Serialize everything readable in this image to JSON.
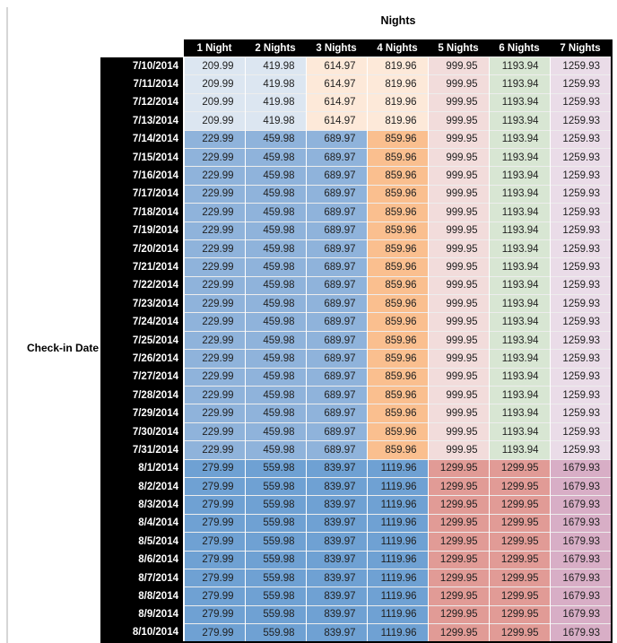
{
  "header": {
    "title": "Nights",
    "row_axis_label": "Check-in Date"
  },
  "colors": {
    "header_bg": "#000000",
    "header_text": "#ffffff",
    "date_bg": "#000000",
    "date_text": "#ffffff",
    "value_text": "#1f1f1f",
    "tier_cell_colors": {
      "low": [
        "#dce6f1",
        "#dce6f1",
        "#fde9d9",
        "#fde9d9",
        "#f2dcdb",
        "#d8e6d3",
        "#eadce8"
      ],
      "mid": [
        "#8fb3db",
        "#8fb3db",
        "#8fb3db",
        "#fabf8f",
        "#f2dcdb",
        "#d8e6d3",
        "#eadce8"
      ],
      "high": [
        "#6fa1d3",
        "#6fa1d3",
        "#6fa1d3",
        "#6fa1d3",
        "#e19b96",
        "#e19b96",
        "#d8aec6"
      ]
    }
  },
  "chart_data": {
    "type": "table",
    "title": "Nights",
    "row_label": "Check-in Date",
    "columns": [
      "1 Night",
      "2 Nights",
      "3 Nights",
      "4 Nights",
      "5 Nights",
      "6 Nights",
      "7 Nights"
    ],
    "rows": [
      {
        "date": "7/10/2014",
        "tier": "low",
        "values": [
          209.99,
          419.98,
          614.97,
          819.96,
          999.95,
          1193.94,
          1259.93
        ]
      },
      {
        "date": "7/11/2014",
        "tier": "low",
        "values": [
          209.99,
          419.98,
          614.97,
          819.96,
          999.95,
          1193.94,
          1259.93
        ]
      },
      {
        "date": "7/12/2014",
        "tier": "low",
        "values": [
          209.99,
          419.98,
          614.97,
          819.96,
          999.95,
          1193.94,
          1259.93
        ]
      },
      {
        "date": "7/13/2014",
        "tier": "low",
        "values": [
          209.99,
          419.98,
          614.97,
          819.96,
          999.95,
          1193.94,
          1259.93
        ]
      },
      {
        "date": "7/14/2014",
        "tier": "mid",
        "values": [
          229.99,
          459.98,
          689.97,
          859.96,
          999.95,
          1193.94,
          1259.93
        ]
      },
      {
        "date": "7/15/2014",
        "tier": "mid",
        "values": [
          229.99,
          459.98,
          689.97,
          859.96,
          999.95,
          1193.94,
          1259.93
        ]
      },
      {
        "date": "7/16/2014",
        "tier": "mid",
        "values": [
          229.99,
          459.98,
          689.97,
          859.96,
          999.95,
          1193.94,
          1259.93
        ]
      },
      {
        "date": "7/17/2014",
        "tier": "mid",
        "values": [
          229.99,
          459.98,
          689.97,
          859.96,
          999.95,
          1193.94,
          1259.93
        ]
      },
      {
        "date": "7/18/2014",
        "tier": "mid",
        "values": [
          229.99,
          459.98,
          689.97,
          859.96,
          999.95,
          1193.94,
          1259.93
        ]
      },
      {
        "date": "7/19/2014",
        "tier": "mid",
        "values": [
          229.99,
          459.98,
          689.97,
          859.96,
          999.95,
          1193.94,
          1259.93
        ]
      },
      {
        "date": "7/20/2014",
        "tier": "mid",
        "values": [
          229.99,
          459.98,
          689.97,
          859.96,
          999.95,
          1193.94,
          1259.93
        ]
      },
      {
        "date": "7/21/2014",
        "tier": "mid",
        "values": [
          229.99,
          459.98,
          689.97,
          859.96,
          999.95,
          1193.94,
          1259.93
        ]
      },
      {
        "date": "7/22/2014",
        "tier": "mid",
        "values": [
          229.99,
          459.98,
          689.97,
          859.96,
          999.95,
          1193.94,
          1259.93
        ]
      },
      {
        "date": "7/23/2014",
        "tier": "mid",
        "values": [
          229.99,
          459.98,
          689.97,
          859.96,
          999.95,
          1193.94,
          1259.93
        ]
      },
      {
        "date": "7/24/2014",
        "tier": "mid",
        "values": [
          229.99,
          459.98,
          689.97,
          859.96,
          999.95,
          1193.94,
          1259.93
        ]
      },
      {
        "date": "7/25/2014",
        "tier": "mid",
        "values": [
          229.99,
          459.98,
          689.97,
          859.96,
          999.95,
          1193.94,
          1259.93
        ]
      },
      {
        "date": "7/26/2014",
        "tier": "mid",
        "values": [
          229.99,
          459.98,
          689.97,
          859.96,
          999.95,
          1193.94,
          1259.93
        ]
      },
      {
        "date": "7/27/2014",
        "tier": "mid",
        "values": [
          229.99,
          459.98,
          689.97,
          859.96,
          999.95,
          1193.94,
          1259.93
        ]
      },
      {
        "date": "7/28/2014",
        "tier": "mid",
        "values": [
          229.99,
          459.98,
          689.97,
          859.96,
          999.95,
          1193.94,
          1259.93
        ]
      },
      {
        "date": "7/29/2014",
        "tier": "mid",
        "values": [
          229.99,
          459.98,
          689.97,
          859.96,
          999.95,
          1193.94,
          1259.93
        ]
      },
      {
        "date": "7/30/2014",
        "tier": "mid",
        "values": [
          229.99,
          459.98,
          689.97,
          859.96,
          999.95,
          1193.94,
          1259.93
        ]
      },
      {
        "date": "7/31/2014",
        "tier": "mid",
        "values": [
          229.99,
          459.98,
          689.97,
          859.96,
          999.95,
          1193.94,
          1259.93
        ]
      },
      {
        "date": "8/1/2014",
        "tier": "high",
        "values": [
          279.99,
          559.98,
          839.97,
          1119.96,
          1299.95,
          1299.95,
          1679.93
        ]
      },
      {
        "date": "8/2/2014",
        "tier": "high",
        "values": [
          279.99,
          559.98,
          839.97,
          1119.96,
          1299.95,
          1299.95,
          1679.93
        ]
      },
      {
        "date": "8/3/2014",
        "tier": "high",
        "values": [
          279.99,
          559.98,
          839.97,
          1119.96,
          1299.95,
          1299.95,
          1679.93
        ]
      },
      {
        "date": "8/4/2014",
        "tier": "high",
        "values": [
          279.99,
          559.98,
          839.97,
          1119.96,
          1299.95,
          1299.95,
          1679.93
        ]
      },
      {
        "date": "8/5/2014",
        "tier": "high",
        "values": [
          279.99,
          559.98,
          839.97,
          1119.96,
          1299.95,
          1299.95,
          1679.93
        ]
      },
      {
        "date": "8/6/2014",
        "tier": "high",
        "values": [
          279.99,
          559.98,
          839.97,
          1119.96,
          1299.95,
          1299.95,
          1679.93
        ]
      },
      {
        "date": "8/7/2014",
        "tier": "high",
        "values": [
          279.99,
          559.98,
          839.97,
          1119.96,
          1299.95,
          1299.95,
          1679.93
        ]
      },
      {
        "date": "8/8/2014",
        "tier": "high",
        "values": [
          279.99,
          559.98,
          839.97,
          1119.96,
          1299.95,
          1299.95,
          1679.93
        ]
      },
      {
        "date": "8/9/2014",
        "tier": "high",
        "values": [
          279.99,
          559.98,
          839.97,
          1119.96,
          1299.95,
          1299.95,
          1679.93
        ]
      },
      {
        "date": "8/10/2014",
        "tier": "high",
        "values": [
          279.99,
          559.98,
          839.97,
          1119.96,
          1299.95,
          1299.95,
          1679.93
        ]
      }
    ]
  }
}
